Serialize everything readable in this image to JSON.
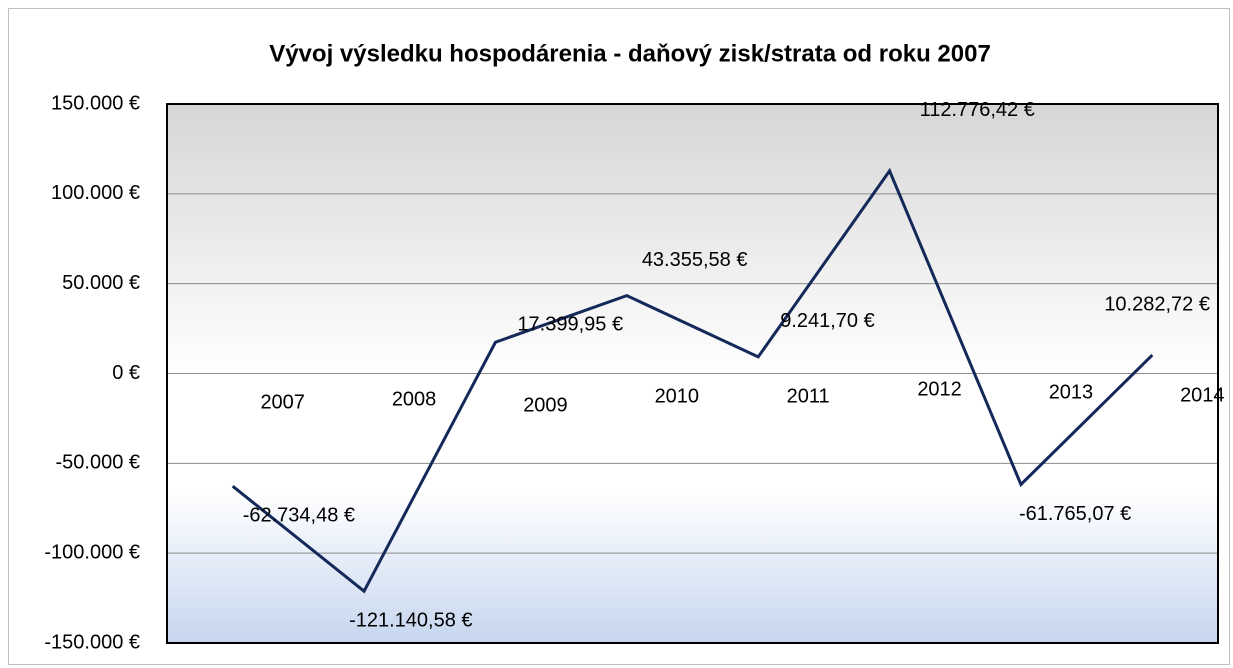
{
  "chart_data": {
    "type": "line",
    "title": "Vývoj výsledku hospodárenia - daňový zisk/strata od roku 2007",
    "categories": [
      "2007",
      "2008",
      "2009",
      "2010",
      "2011",
      "2012",
      "2013",
      "2014"
    ],
    "series": [
      {
        "name": "daňový zisk/strata",
        "color": "#14285a",
        "values": [
          -62734.48,
          -121140.58,
          17399.95,
          43355.58,
          9241.7,
          112776.42,
          -61765.07,
          10282.72
        ],
        "value_labels": [
          "-62.734,48 €",
          "-121.140,58 €",
          "17.399,95 €",
          "43.355,58 €",
          "9.241,70 €",
          "112.776,42 €",
          "-61.765,07 €",
          "10.282,72 €"
        ]
      }
    ],
    "ylim": [
      -150000,
      150000
    ],
    "yticks": [
      {
        "value": 150000,
        "label": "150.000 €"
      },
      {
        "value": 100000,
        "label": "100.000 €"
      },
      {
        "value": 50000,
        "label": "50.000 €"
      },
      {
        "value": 0,
        "label": "0 €"
      },
      {
        "value": -50000,
        "label": "-50.000 €"
      },
      {
        "value": -100000,
        "label": "-100.000 €"
      },
      {
        "value": -150000,
        "label": "-150.000 €"
      }
    ],
    "grid": true
  }
}
